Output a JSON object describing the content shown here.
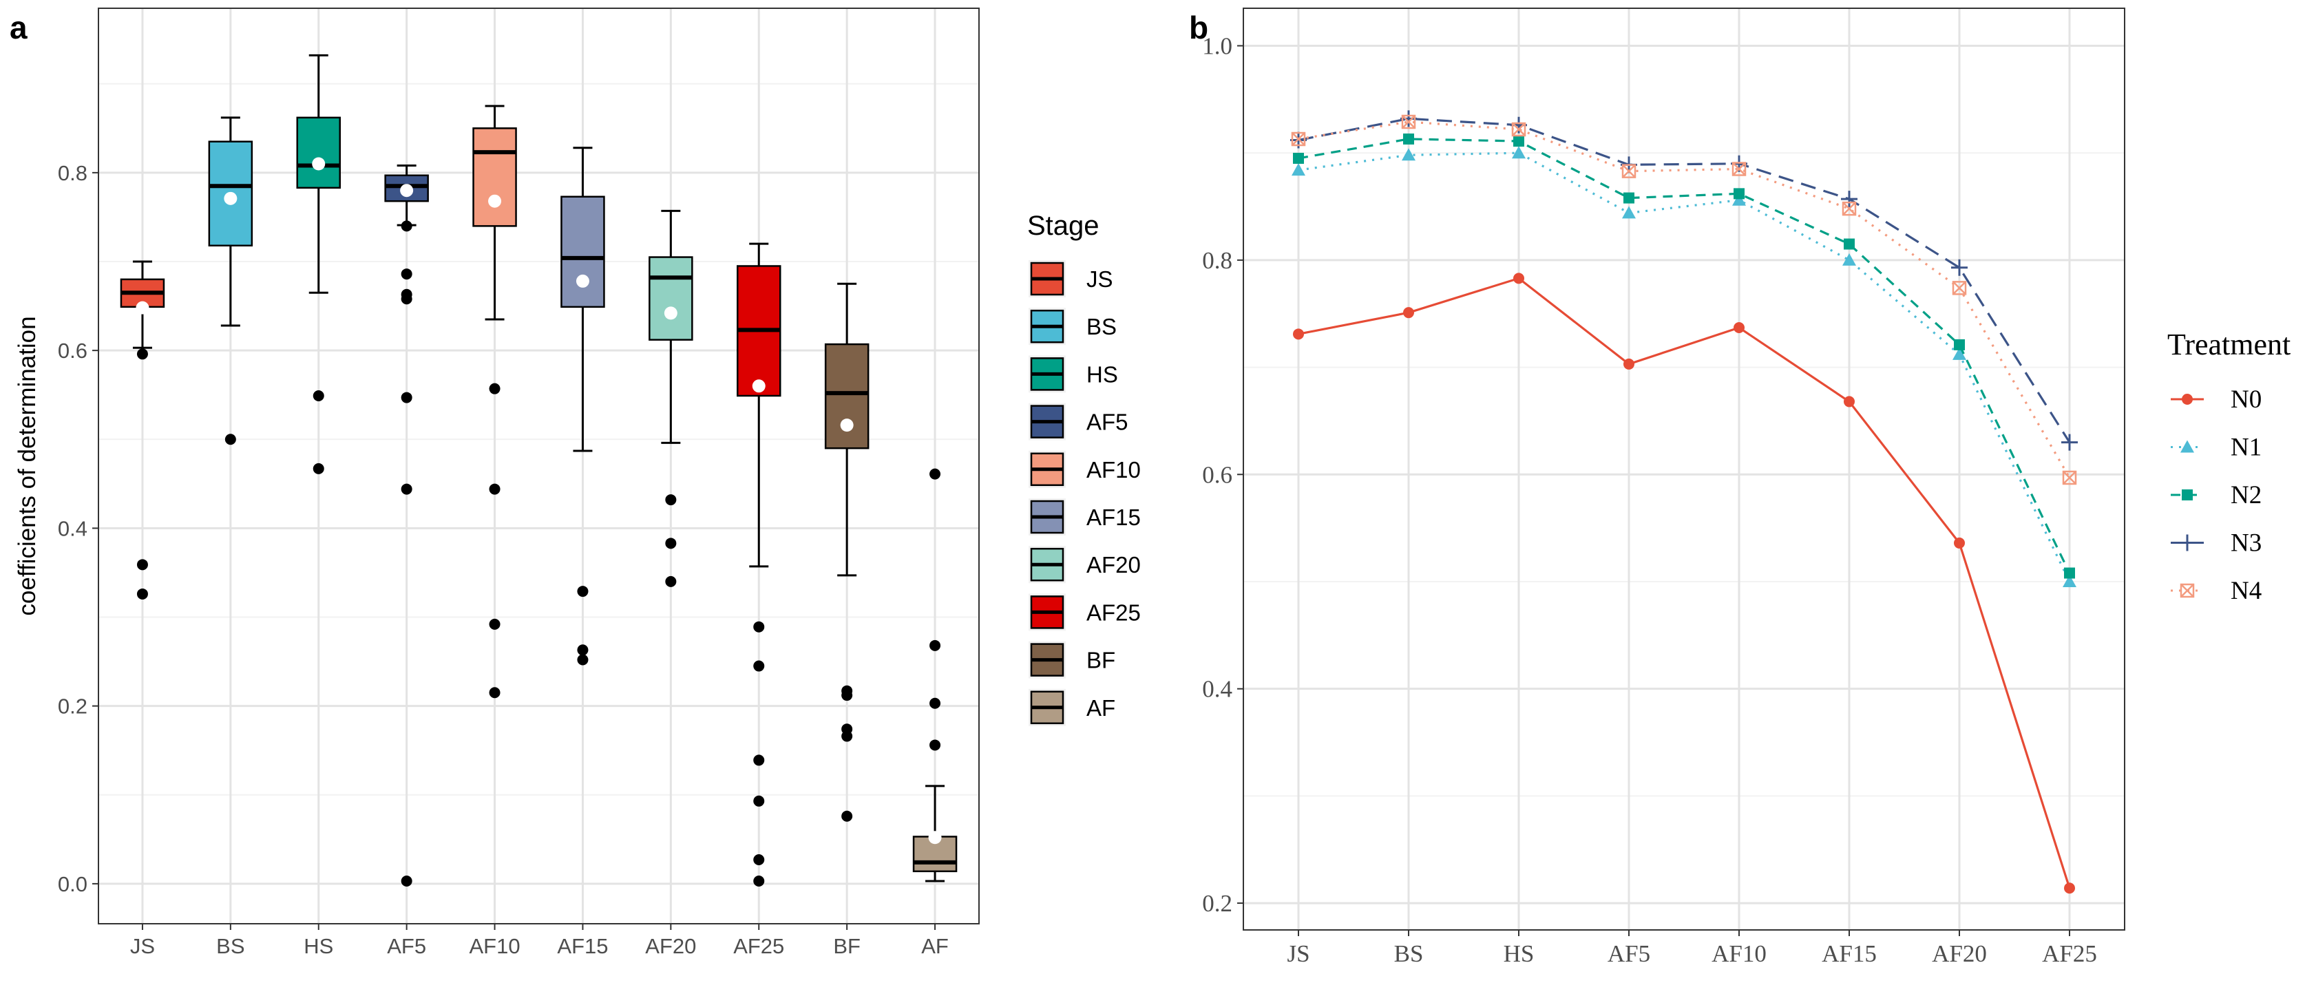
{
  "chart_data": [
    {
      "panel_label": "a",
      "type": "boxplot",
      "ylabel": "coefficients of determination",
      "xlabel": "",
      "ylim": [
        -0.045,
        0.985
      ],
      "yticks": [
        "0.0",
        "0.2",
        "0.4",
        "0.6",
        "0.8"
      ],
      "legend_title": "Stage",
      "legend_position": "right",
      "categories": [
        "JS",
        "BS",
        "HS",
        "AF5",
        "AF10",
        "AF15",
        "AF20",
        "AF25",
        "BF",
        "AF"
      ],
      "boxes": [
        {
          "name": "JS",
          "color": "#e64b35",
          "whisker_low": 0.603,
          "q1": 0.649,
          "median": 0.665,
          "q3": 0.68,
          "whisker_high": 0.7,
          "mean": 0.648,
          "outliers": [
            0.596,
            0.359,
            0.326
          ]
        },
        {
          "name": "BS",
          "color": "#4dbbd5",
          "whisker_low": 0.628,
          "q1": 0.718,
          "median": 0.785,
          "q3": 0.835,
          "whisker_high": 0.862,
          "mean": 0.771,
          "outliers": [
            0.5
          ]
        },
        {
          "name": "HS",
          "color": "#00a087",
          "whisker_low": 0.665,
          "q1": 0.783,
          "median": 0.808,
          "q3": 0.862,
          "whisker_high": 0.932,
          "mean": 0.81,
          "outliers": [
            0.549,
            0.467
          ]
        },
        {
          "name": "AF5",
          "color": "#3c5488",
          "whisker_low": 0.741,
          "q1": 0.768,
          "median": 0.785,
          "q3": 0.797,
          "whisker_high": 0.808,
          "mean": 0.78,
          "outliers": [
            0.74,
            0.686,
            0.663,
            0.658,
            0.547,
            0.444,
            0.003
          ]
        },
        {
          "name": "AF10",
          "color": "#f39b7f",
          "whisker_low": 0.635,
          "q1": 0.74,
          "median": 0.823,
          "q3": 0.85,
          "whisker_high": 0.875,
          "mean": 0.768,
          "outliers": [
            0.557,
            0.444,
            0.292,
            0.215
          ]
        },
        {
          "name": "AF15",
          "color": "#8491b4",
          "whisker_low": 0.487,
          "q1": 0.649,
          "median": 0.704,
          "q3": 0.773,
          "whisker_high": 0.828,
          "mean": 0.678,
          "outliers": [
            0.329,
            0.263,
            0.252
          ]
        },
        {
          "name": "AF20",
          "color": "#91d1c2",
          "whisker_low": 0.496,
          "q1": 0.612,
          "median": 0.682,
          "q3": 0.705,
          "whisker_high": 0.757,
          "mean": 0.642,
          "outliers": [
            0.432,
            0.383,
            0.34
          ]
        },
        {
          "name": "AF25",
          "color": "#dc0000",
          "whisker_low": 0.357,
          "q1": 0.549,
          "median": 0.623,
          "q3": 0.695,
          "whisker_high": 0.72,
          "mean": 0.56,
          "outliers": [
            0.289,
            0.245,
            0.139,
            0.093,
            0.027,
            0.003
          ]
        },
        {
          "name": "BF",
          "color": "#7e6148",
          "whisker_low": 0.347,
          "q1": 0.49,
          "median": 0.552,
          "q3": 0.607,
          "whisker_high": 0.675,
          "mean": 0.516,
          "outliers": [
            0.217,
            0.212,
            0.174,
            0.166,
            0.076
          ]
        },
        {
          "name": "AF",
          "color": "#b09c85",
          "whisker_low": 0.003,
          "q1": 0.014,
          "median": 0.024,
          "q3": 0.053,
          "whisker_high": 0.11,
          "mean": 0.052,
          "outliers": [
            0.461,
            0.268,
            0.203,
            0.156
          ]
        }
      ]
    },
    {
      "panel_label": "b",
      "type": "line",
      "xlabel": "",
      "ylabel": "",
      "ylim": [
        0.175,
        1.035
      ],
      "yticks": [
        "0.2",
        "0.4",
        "0.6",
        "0.8",
        "1.0"
      ],
      "legend_title": "Treatment",
      "legend_position": "right",
      "categories": [
        "JS",
        "BS",
        "HS",
        "AF5",
        "AF10",
        "AF15",
        "AF20",
        "AF25"
      ],
      "series": [
        {
          "name": "N0",
          "color": "#e64b35",
          "dash": "solid",
          "marker": "circle",
          "values": [
            0.731,
            0.751,
            0.783,
            0.703,
            0.737,
            0.668,
            0.536,
            0.214
          ]
        },
        {
          "name": "N1",
          "color": "#4dbbd5",
          "dash": "dotted",
          "marker": "triangle",
          "values": [
            0.884,
            0.898,
            0.9,
            0.844,
            0.856,
            0.8,
            0.712,
            0.5
          ]
        },
        {
          "name": "N2",
          "color": "#00a087",
          "dash": "dashed",
          "marker": "square",
          "values": [
            0.895,
            0.913,
            0.911,
            0.858,
            0.862,
            0.815,
            0.721,
            0.508
          ]
        },
        {
          "name": "N3",
          "color": "#3c5488",
          "dash": "longdash",
          "marker": "plus",
          "values": [
            0.912,
            0.932,
            0.926,
            0.889,
            0.89,
            0.857,
            0.793,
            0.63
          ]
        },
        {
          "name": "N4",
          "color": "#f39b7f",
          "dash": "dotted",
          "marker": "boxx",
          "values": [
            0.913,
            0.929,
            0.922,
            0.883,
            0.885,
            0.848,
            0.774,
            0.597
          ]
        }
      ]
    }
  ]
}
